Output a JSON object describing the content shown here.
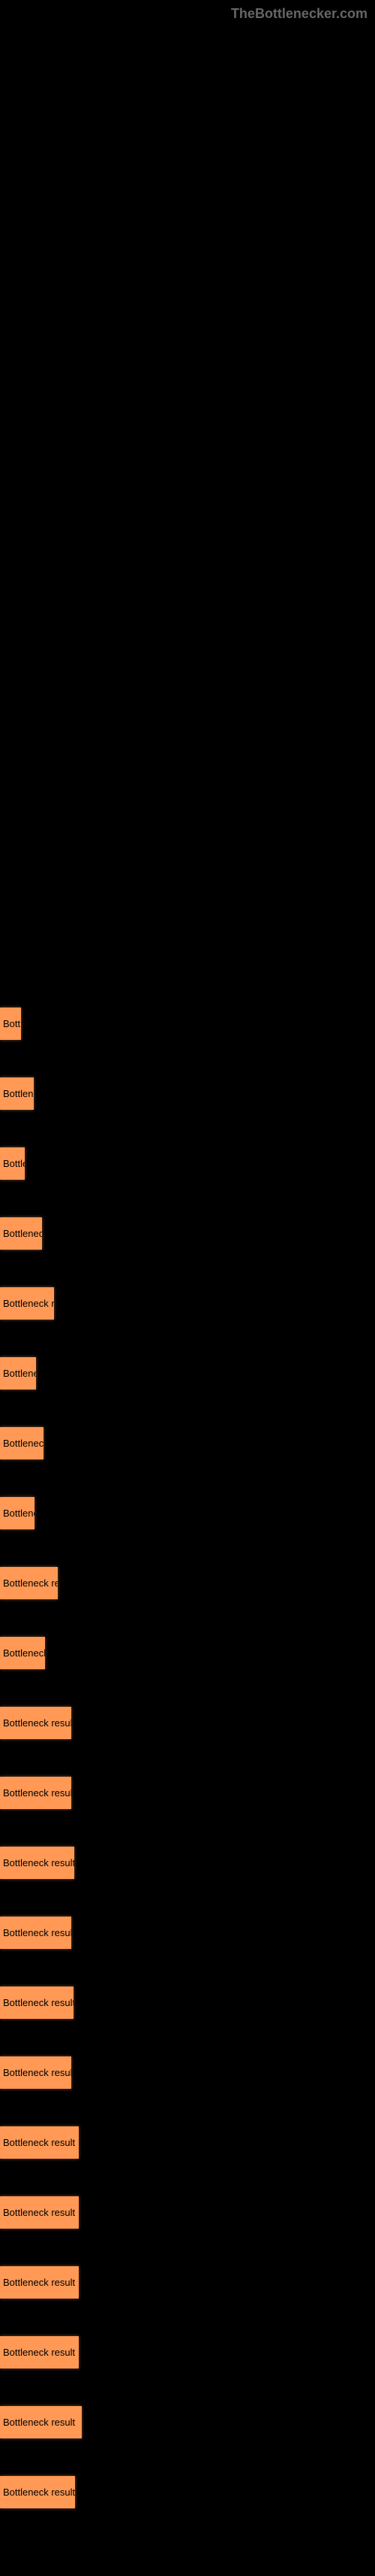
{
  "watermark": "TheBottlenecker.com",
  "chart": {
    "type": "bar",
    "bar_color": "#ff9955",
    "text_color": "#000000",
    "background_color": "#000000",
    "bar_label": "Bottleneck result",
    "font_size": 13,
    "bars": [
      {
        "width": 28
      },
      {
        "width": 45
      },
      {
        "width": 33
      },
      {
        "width": 56
      },
      {
        "width": 72
      },
      {
        "width": 48
      },
      {
        "width": 58
      },
      {
        "width": 46
      },
      {
        "width": 77
      },
      {
        "width": 60
      },
      {
        "width": 95
      },
      {
        "width": 95
      },
      {
        "width": 99
      },
      {
        "width": 95
      },
      {
        "width": 98
      },
      {
        "width": 95
      },
      {
        "width": 105
      },
      {
        "width": 105
      },
      {
        "width": 105
      },
      {
        "width": 105
      },
      {
        "width": 109
      },
      {
        "width": 100
      }
    ]
  }
}
